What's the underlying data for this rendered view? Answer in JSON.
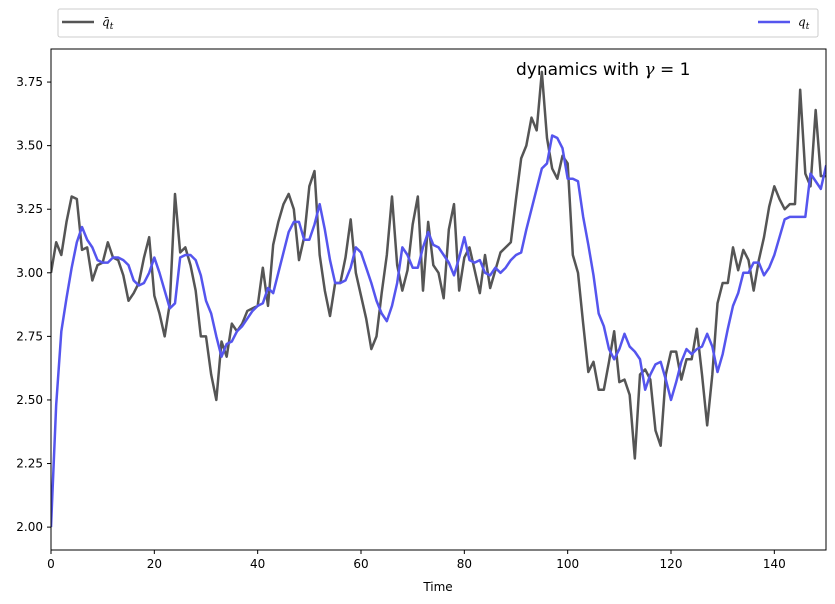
{
  "chart_data": {
    "type": "line",
    "title": "",
    "xlabel": "Time",
    "ylabel": "",
    "xlim": [
      0,
      150
    ],
    "ylim": [
      1.91,
      3.88
    ],
    "x_ticks": [
      0,
      20,
      40,
      60,
      80,
      100,
      120,
      140
    ],
    "y_ticks": [
      2.0,
      2.25,
      2.5,
      2.75,
      3.0,
      3.25,
      3.5,
      3.75
    ],
    "grid": false,
    "legend_placement": "above plot, entries at left and right",
    "annotation": {
      "prefix": "dynamics with ",
      "math_symbol": "γ",
      "suffix": " = 1"
    },
    "series": [
      {
        "name": "q̄t",
        "legend_base": "q̄",
        "legend_sub": "t",
        "color": "#555555",
        "values": [
          3.0,
          3.12,
          3.07,
          3.2,
          3.3,
          3.29,
          3.09,
          3.1,
          2.97,
          3.03,
          3.04,
          3.12,
          3.06,
          3.05,
          2.99,
          2.89,
          2.92,
          2.96,
          3.06,
          3.14,
          2.91,
          2.84,
          2.75,
          2.88,
          3.31,
          3.08,
          3.1,
          3.03,
          2.93,
          2.75,
          2.75,
          2.6,
          2.5,
          2.73,
          2.67,
          2.8,
          2.77,
          2.8,
          2.85,
          2.86,
          2.87,
          3.02,
          2.87,
          3.11,
          3.2,
          3.27,
          3.31,
          3.25,
          3.05,
          3.14,
          3.34,
          3.4,
          3.07,
          2.93,
          2.83,
          2.96,
          2.96,
          3.06,
          3.21,
          3.0,
          2.91,
          2.82,
          2.7,
          2.75,
          2.92,
          3.07,
          3.3,
          3.03,
          2.93,
          3.01,
          3.19,
          3.3,
          2.93,
          3.2,
          3.03,
          3.0,
          2.9,
          3.17,
          3.27,
          2.93,
          3.06,
          3.1,
          3.01,
          2.92,
          3.07,
          2.94,
          3.01,
          3.08,
          3.1,
          3.12,
          3.29,
          3.45,
          3.5,
          3.61,
          3.56,
          3.79,
          3.53,
          3.41,
          3.37,
          3.46,
          3.43,
          3.07,
          3.0,
          2.8,
          2.61,
          2.65,
          2.54,
          2.54,
          2.65,
          2.77,
          2.57,
          2.58,
          2.52,
          2.27,
          2.6,
          2.62,
          2.58,
          2.38,
          2.32,
          2.6,
          2.69,
          2.69,
          2.58,
          2.66,
          2.66,
          2.78,
          2.6,
          2.4,
          2.6,
          2.88,
          2.96,
          2.96,
          3.1,
          3.01,
          3.09,
          3.05,
          2.93,
          3.05,
          3.14,
          3.26,
          3.34,
          3.29,
          3.25,
          3.27,
          3.27,
          3.72,
          3.39,
          3.34,
          3.64,
          3.38,
          3.38
        ]
      },
      {
        "name": "qt",
        "legend_base": "q",
        "legend_sub": "t",
        "color": "#5555ee",
        "values": [
          2.0,
          2.48,
          2.77,
          2.9,
          3.02,
          3.12,
          3.18,
          3.13,
          3.1,
          3.05,
          3.04,
          3.04,
          3.06,
          3.06,
          3.05,
          3.03,
          2.97,
          2.95,
          2.96,
          3.0,
          3.06,
          3.0,
          2.93,
          2.86,
          2.88,
          3.06,
          3.07,
          3.07,
          3.05,
          2.99,
          2.89,
          2.84,
          2.75,
          2.67,
          2.72,
          2.73,
          2.77,
          2.79,
          2.82,
          2.85,
          2.87,
          2.88,
          2.94,
          2.92,
          3.0,
          3.08,
          3.16,
          3.2,
          3.2,
          3.13,
          3.13,
          3.19,
          3.27,
          3.17,
          3.05,
          2.96,
          2.96,
          2.97,
          3.02,
          3.1,
          3.08,
          3.02,
          2.96,
          2.89,
          2.84,
          2.81,
          2.87,
          2.96,
          3.1,
          3.07,
          3.02,
          3.02,
          3.1,
          3.16,
          3.11,
          3.1,
          3.07,
          3.04,
          2.99,
          3.06,
          3.14,
          3.05,
          3.04,
          3.05,
          3.0,
          2.99,
          3.02,
          3.0,
          3.02,
          3.05,
          3.07,
          3.08,
          3.17,
          3.25,
          3.33,
          3.41,
          3.43,
          3.54,
          3.53,
          3.49,
          3.37,
          3.37,
          3.36,
          3.22,
          3.11,
          2.99,
          2.84,
          2.79,
          2.7,
          2.66,
          2.7,
          2.76,
          2.71,
          2.69,
          2.66,
          2.54,
          2.6,
          2.64,
          2.65,
          2.58,
          2.5,
          2.57,
          2.65,
          2.7,
          2.68,
          2.7,
          2.71,
          2.76,
          2.71,
          2.61,
          2.68,
          2.78,
          2.87,
          2.92,
          3.0,
          3.0,
          3.04,
          3.04,
          2.99,
          3.02,
          3.07,
          3.14,
          3.21,
          3.22,
          3.22,
          3.22,
          3.22,
          3.39,
          3.36,
          3.33,
          3.42,
          3.38
        ]
      }
    ]
  }
}
